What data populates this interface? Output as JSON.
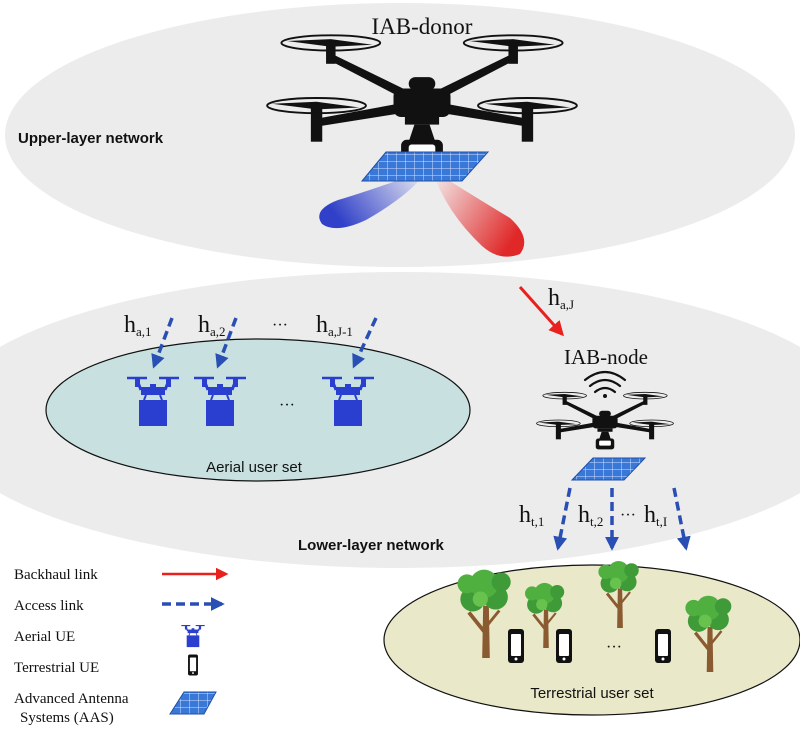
{
  "upper": {
    "title": "IAB-donor",
    "network_label": "Upper-layer network"
  },
  "lower": {
    "network_label": "Lower-layer network",
    "node_title": "IAB-node"
  },
  "links": {
    "backhaul": {
      "base": "h",
      "sub": "a,J"
    },
    "aerial": [
      {
        "base": "h",
        "sub": "a,1"
      },
      {
        "base": "h",
        "sub": "a,2"
      },
      {
        "base": "h",
        "sub": "a,J-1"
      }
    ],
    "aerial_dots": "···",
    "terrestrial": [
      {
        "base": "h",
        "sub": "t,1"
      },
      {
        "base": "h",
        "sub": "t,2"
      },
      {
        "base": "h",
        "sub": "t,I"
      }
    ],
    "terrestrial_dots": "···"
  },
  "sets": {
    "aerial_label": "Aerial user set",
    "aerial_dots": "···",
    "terrestrial_label": "Terrestrial user set",
    "terrestrial_dots": "···"
  },
  "legend": {
    "backhaul": "Backhaul link",
    "access": "Access link",
    "aerial_ue": "Aerial UE",
    "terrestrial_ue": "Terrestrial UE",
    "aas_line1": "Advanced Antenna",
    "aas_line2": "Systems (AAS)"
  },
  "colors": {
    "backhaul": "#e8201e",
    "access": "#2a4fb4",
    "aerial_ue": "#2a3fd0",
    "upper_ellipse": "#ececec",
    "aerial_set": "#c8e1e0",
    "terrestrial_set": "#e9e8c8",
    "beam_blue": "#3040c8",
    "beam_red": "#e02828"
  }
}
